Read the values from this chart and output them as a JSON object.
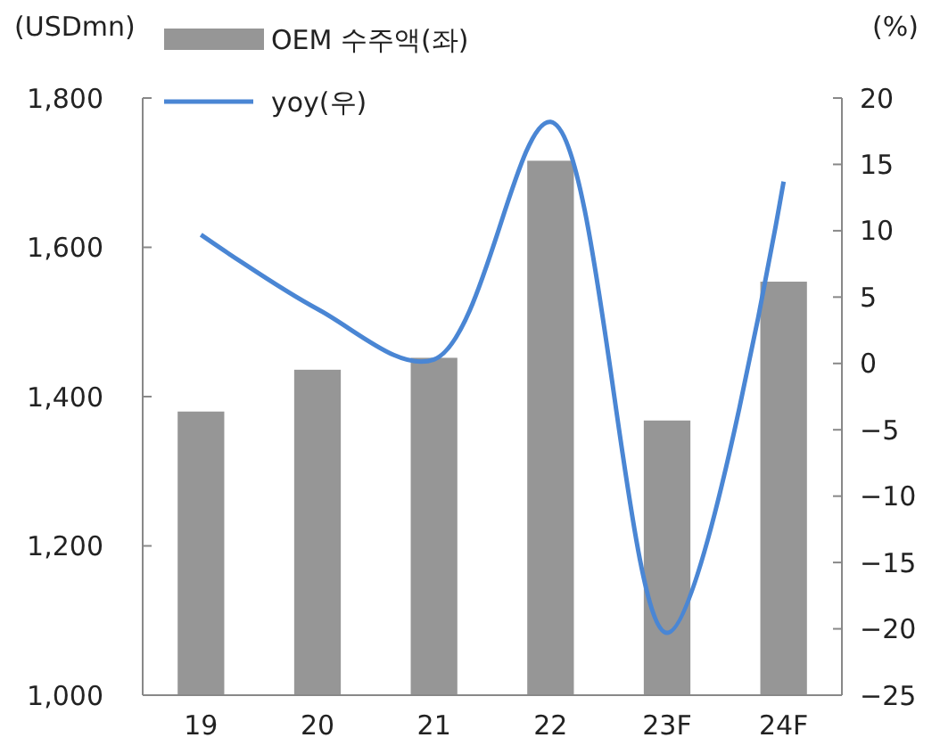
{
  "chart_data": {
    "type": "bar",
    "ylabel": "(USDmn)",
    "y2label": "(%)",
    "categories": [
      "19",
      "20",
      "21",
      "22",
      "23F",
      "24F"
    ],
    "series": [
      {
        "name": "OEM 수주액(좌)",
        "color": "#969696",
        "values": [
          1380,
          1436,
          1452,
          1716,
          1368,
          1554
        ]
      },
      {
        "name": "yoy(우)",
        "type": "line",
        "axis": "y2",
        "color": "#4a86d4",
        "values": [
          9.7,
          4.1,
          0.3,
          18.2,
          -20.3,
          13.7
        ]
      }
    ],
    "ylim": [
      1000,
      1800
    ],
    "yticks": [
      {
        "value": 1000,
        "label": "1,000"
      },
      {
        "value": 1200,
        "label": "1,200"
      },
      {
        "value": 1400,
        "label": "1,400"
      },
      {
        "value": 1600,
        "label": "1,600"
      },
      {
        "value": 1800,
        "label": "1,800"
      }
    ],
    "y2lim": [
      -25,
      20
    ],
    "y2ticks": [
      {
        "value": -25,
        "label": "−25"
      },
      {
        "value": -20,
        "label": "−20"
      },
      {
        "value": -15,
        "label": "−15"
      },
      {
        "value": -10,
        "label": "−10"
      },
      {
        "value": -5,
        "label": "−5"
      },
      0,
      5,
      10,
      15,
      20
    ],
    "legend": "top left",
    "line_style": "solid",
    "marker": "none"
  }
}
